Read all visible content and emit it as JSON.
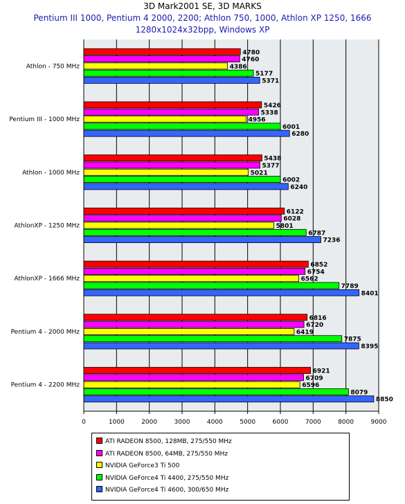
{
  "titles": [
    "3D Mark2001 SE, 3D MARKS",
    "Pentium III 1000, Pentium 4 2000, 2200; Athlon 750, 1000, Athlon XP 1250, 1666",
    "1280x1024x32bpp, Windows XP"
  ],
  "colors": {
    "title_main": "#000000",
    "title_sub": "#1a1ab0",
    "plot_bg": "#e8ecee",
    "grid": "#000000"
  },
  "chart_data": {
    "type": "bar",
    "orientation": "horizontal",
    "title": "3D Mark2001 SE, 3D MARKS",
    "subtitle": "Pentium III 1000, Pentium 4 2000, 2200; Athlon 750, 1000, Athlon XP 1250, 1666 — 1280x1024x32bpp, Windows XP",
    "categories": [
      "Athlon - 750 MHz",
      "Pentium III - 1000 MHz",
      "Athlon - 1000 MHz",
      "AthlonXP - 1250 MHz",
      "AthlonXP - 1666 MHz",
      "Pentium 4 - 2000 MHz",
      "Pentium 4 - 2200 MHz"
    ],
    "series": [
      {
        "name": "ATI RADEON 8500, 128MB, 275/550 MHz",
        "color": "#ff0000",
        "values": [
          4780,
          5426,
          5438,
          6122,
          6852,
          6816,
          6921
        ]
      },
      {
        "name": "ATI RADEON 8500, 64MB, 275/550 MHz",
        "color": "#ff00ff",
        "values": [
          4760,
          5338,
          5377,
          6028,
          6754,
          6720,
          6709
        ]
      },
      {
        "name": "NVIDIA GeForce3 Ti 500",
        "color": "#ffff00",
        "values": [
          4386,
          4956,
          5021,
          5801,
          6562,
          6419,
          6596
        ]
      },
      {
        "name": "NVIDIA GeForce4 Ti 4400, 275/550 MHz",
        "color": "#00ff00",
        "values": [
          5177,
          6001,
          6002,
          6787,
          7789,
          7875,
          8079
        ]
      },
      {
        "name": "NVIDIA GeForce4 Ti 4600, 300/650 MHz",
        "color": "#3366ff",
        "values": [
          5371,
          6280,
          6240,
          7236,
          8401,
          8395,
          8850
        ]
      }
    ],
    "xlim": [
      0,
      9000
    ],
    "xticks": [
      0,
      1000,
      2000,
      3000,
      4000,
      5000,
      6000,
      7000,
      8000,
      9000
    ],
    "xlabel": "",
    "ylabel": "",
    "grid": true,
    "legend": "bottom"
  }
}
